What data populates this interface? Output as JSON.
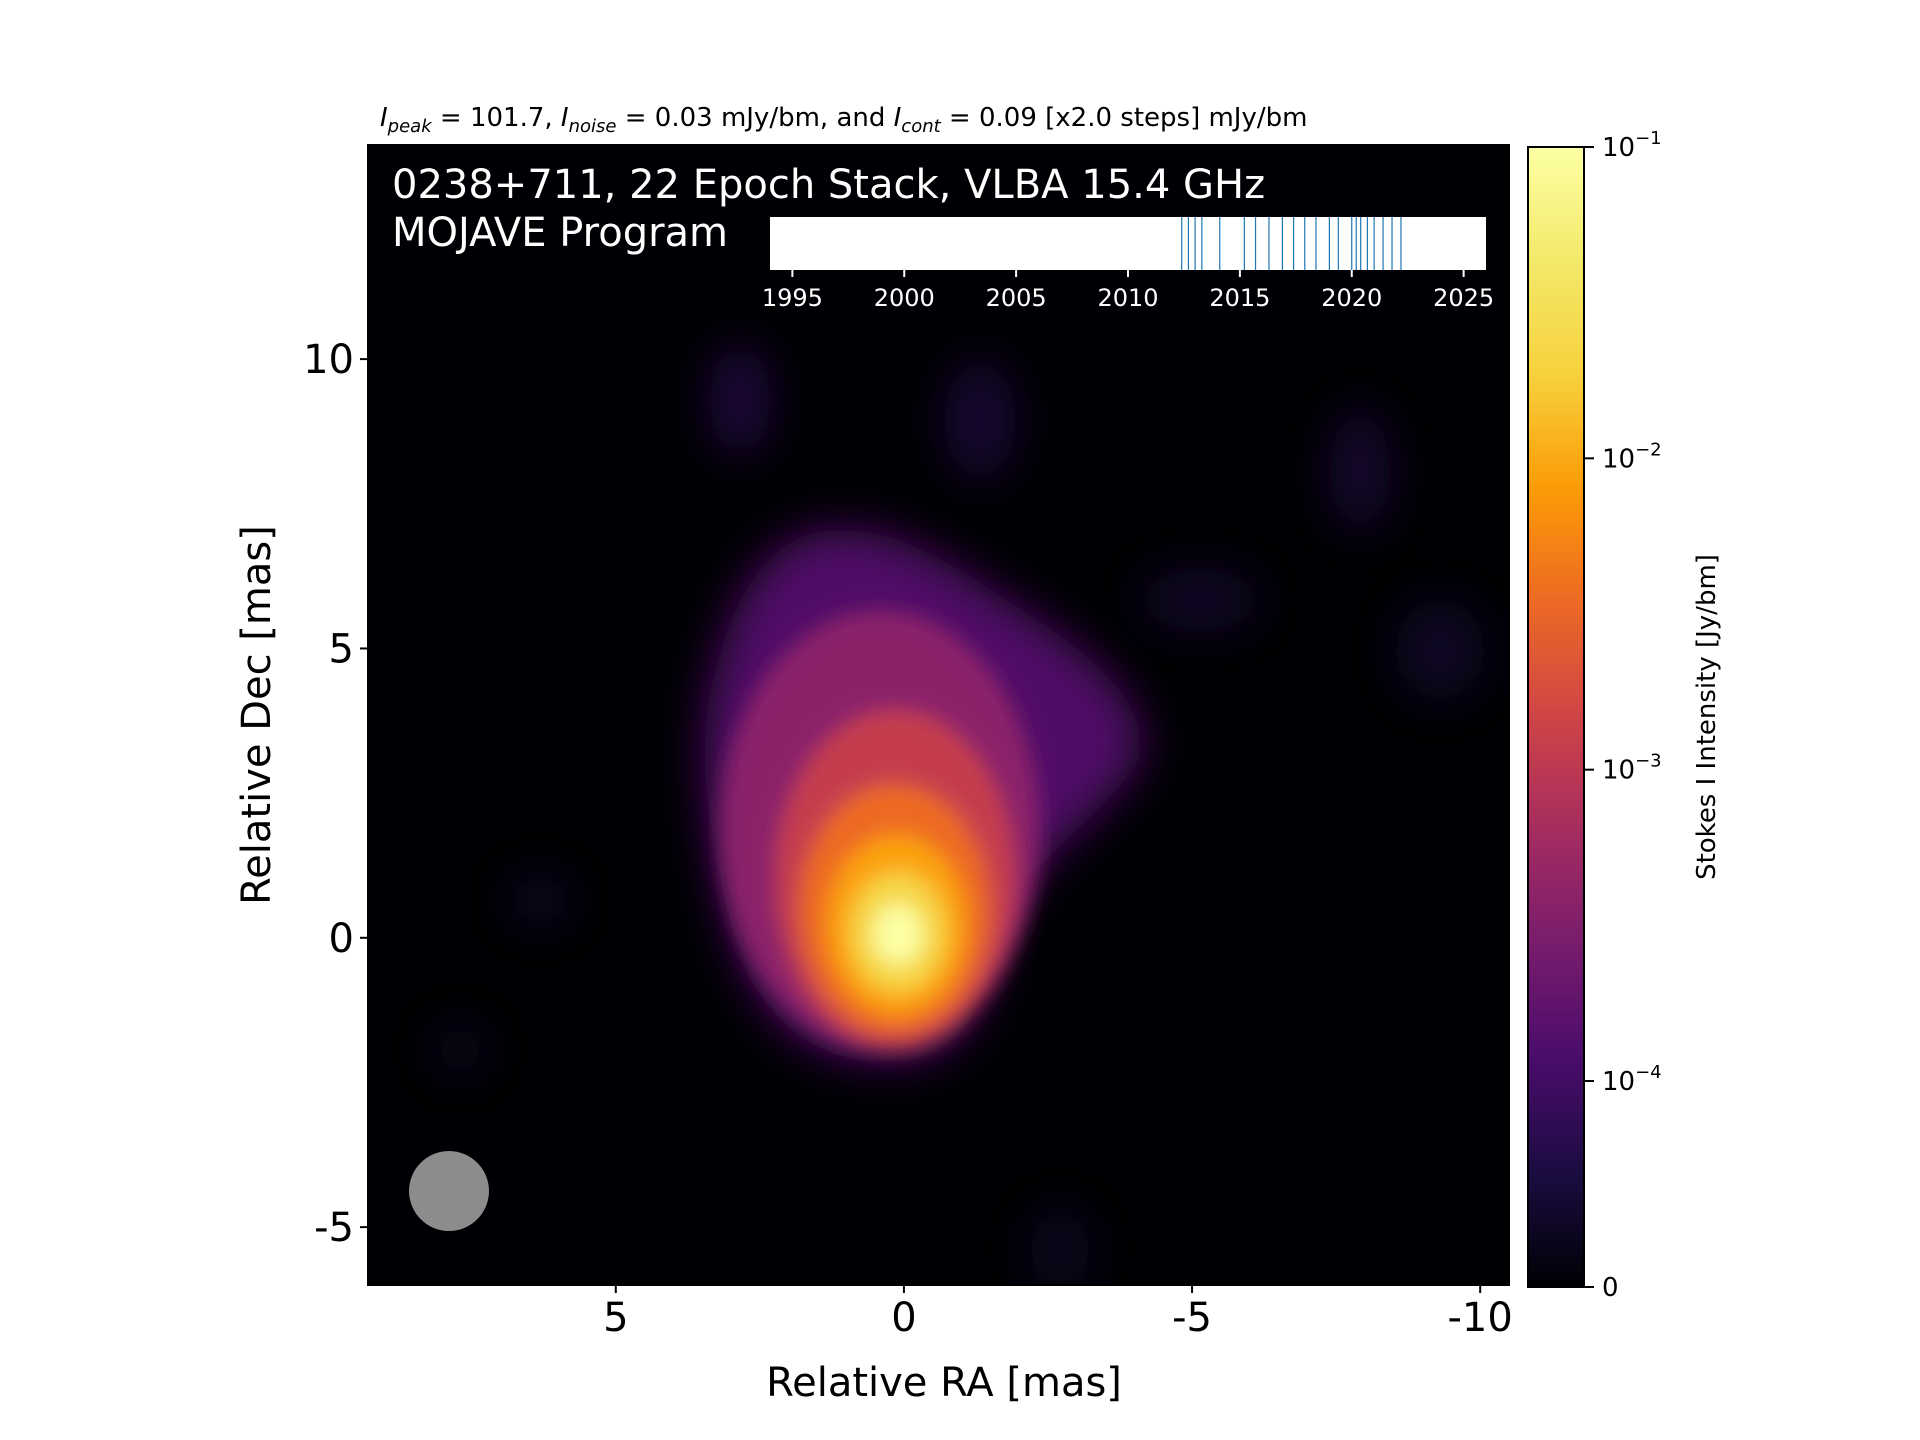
{
  "chart_data": {
    "type": "heatmap",
    "title_parts": {
      "peak_sym": "I",
      "peak_sub": "peak",
      "peak_val": " = 101.7, ",
      "noise_sym": "I",
      "noise_sub": "noise",
      "noise_val": " = 0.03 mJy/bm, and ",
      "cont_sym": "I",
      "cont_sub": "cont",
      "cont_val": " = 0.09 [x2.0 steps] mJy/bm"
    },
    "label_line1": "0238+711, 22 Epoch Stack, VLBA 15.4 GHz",
    "label_line2": "MOJAVE Program",
    "xlabel": "Relative RA [mas]",
    "ylabel": "Relative Dec [mas]",
    "xlim": [
      9.3,
      -10.5
    ],
    "ylim": [
      -6.0,
      13.7
    ],
    "xticks": [
      5,
      0,
      -5,
      -10
    ],
    "xtick_labels": [
      "5",
      "0",
      "-5",
      "-10"
    ],
    "yticks": [
      10,
      5,
      0,
      -5
    ],
    "ytick_labels": [
      "10",
      "5",
      "0",
      "-5"
    ],
    "colorbar": {
      "label": "Stokes I Intensity [Jy/bm]",
      "scale": "symlog",
      "range": [
        0,
        0.1
      ],
      "tick_values": [
        0.1,
        0.01,
        0.001,
        0.0001,
        0
      ],
      "tick_labels": [
        {
          "base": "10",
          "exp": "−1"
        },
        {
          "base": "10",
          "exp": "−2"
        },
        {
          "base": "10",
          "exp": "−3"
        },
        {
          "base": "10",
          "exp": "−4"
        },
        {
          "base": "0",
          "exp": ""
        }
      ],
      "colormap": "inferno"
    },
    "peak_position_mas": [
      0.0,
      0.0
    ],
    "peak_intensity_mJy_per_bm": 101.7,
    "noise_mJy_per_bm": 0.03,
    "lowest_contour_mJy_per_bm": 0.09,
    "contour_step_factor": 2.0,
    "contour_color": "#e8d8f0",
    "beam": {
      "color": "#8c8c8c",
      "shape": "circle",
      "position": "bottom-left"
    },
    "epoch_inset": {
      "xlim": [
        1994,
        2026
      ],
      "ticks": [
        1995,
        2000,
        2005,
        2010,
        2015,
        2020,
        2025
      ],
      "tick_labels": [
        "1995",
        "2000",
        "2005",
        "2010",
        "2015",
        "2020",
        "2025"
      ],
      "epoch_years": [
        2012.4,
        2012.7,
        2013.0,
        2013.3,
        2014.1,
        2015.2,
        2015.7,
        2016.3,
        2016.9,
        2017.4,
        2017.9,
        2018.4,
        2019.0,
        2019.4,
        2020.0,
        2020.2,
        2020.4,
        2020.7,
        2021.0,
        2021.4,
        2021.8,
        2022.2
      ],
      "line_color": "#1f77b4"
    }
  }
}
